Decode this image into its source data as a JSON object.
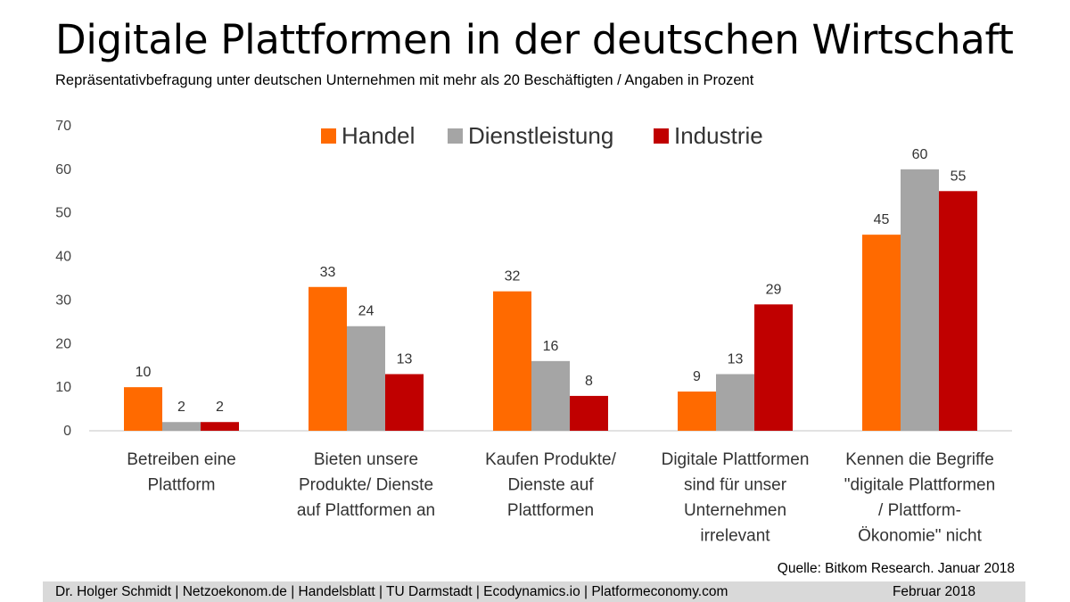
{
  "title": "Digitale Plattformen in der deutschen Wirtschaft",
  "subtitle": "Repräsentativbefragung unter deutschen Unternehmen mit mehr als 20 Beschäftigten / Angaben in Prozent",
  "source": "Quelle: Bitkom Research. Januar 2018",
  "footer": {
    "left": "Dr. Holger Schmidt  |  Netzoekonom.de |  Handelsblatt  |  TU Darmstadt   | Ecodynamics.io  |  Platformeconomy.com",
    "right": "Februar 2018"
  },
  "chart_data": {
    "type": "bar",
    "categories": [
      [
        "Betreiben eine",
        "Plattform"
      ],
      [
        "Bieten unsere",
        "Produkte/ Dienste",
        "auf Plattformen an"
      ],
      [
        "Kaufen Produkte/",
        "Dienste auf",
        "Plattformen"
      ],
      [
        "Digitale Plattformen",
        "sind für unser",
        "Unternehmen",
        "irrelevant"
      ],
      [
        "Kennen die Begriffe",
        "\"digitale Plattformen",
        "/ Plattform-",
        "Ökonomie\" nicht"
      ]
    ],
    "series": [
      {
        "name": "Handel",
        "color": "#ff6a00",
        "values": [
          10,
          33,
          32,
          9,
          45
        ]
      },
      {
        "name": "Dienstleistung",
        "color": "#a5a5a5",
        "values": [
          2,
          24,
          16,
          13,
          60
        ]
      },
      {
        "name": "Industrie",
        "color": "#c00000",
        "values": [
          2,
          13,
          8,
          29,
          55
        ]
      }
    ],
    "ylim": [
      0,
      70
    ],
    "yticks": [
      0,
      10,
      20,
      30,
      40,
      50,
      60,
      70
    ],
    "grid": false,
    "legend": "top-center"
  }
}
